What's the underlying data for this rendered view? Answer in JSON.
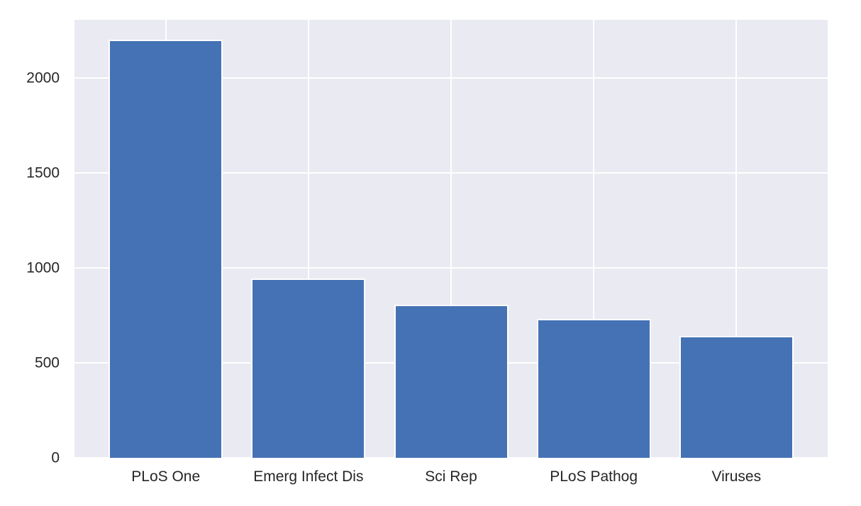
{
  "figure": {
    "title": ""
  },
  "chart_data": {
    "type": "bar",
    "categories": [
      "PLoS One",
      "Emerg Infect Dis",
      "Sci Rep",
      "PLoS Pathog",
      "Viruses"
    ],
    "values": [
      2200,
      945,
      805,
      730,
      640
    ],
    "title": "",
    "xlabel": "",
    "ylabel": "",
    "yticks": [
      0,
      500,
      1000,
      1500,
      2000
    ],
    "ylim": [
      0,
      2305
    ],
    "xlim": [
      -0.64,
      4.64
    ],
    "bar_width": 0.8,
    "grid": true,
    "legend": null,
    "style": {
      "bar_color": "#4472b4",
      "bar_edge_color": "#ffffff",
      "plot_background": "#e9eaf2",
      "grid_color": "#ffffff",
      "figure_background": "#ffffff",
      "tick_label_color": "#262626"
    }
  }
}
